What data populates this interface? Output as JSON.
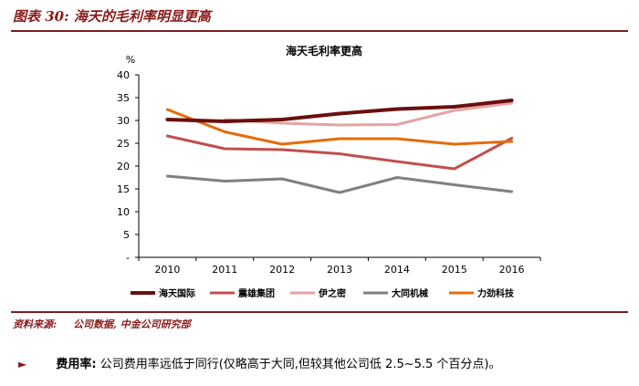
{
  "figure_title": "图表 30: 海天的毛利率明显更高",
  "source": {
    "label": "资料来源:",
    "text": "公司数据, 中金公司研究部"
  },
  "bullet": {
    "label": "费用率:",
    "text": "公司费用率远低于同行(仅略高于大同,但较其他公司低 2.5~5.5 个百分点)。"
  },
  "chart_data": {
    "type": "line",
    "title": "海天毛利率更高",
    "ylabel": "%",
    "xlabel": "",
    "ylim": [
      0,
      40
    ],
    "yticks": [
      "-",
      "5",
      "10",
      "15",
      "20",
      "25",
      "30",
      "35",
      "40"
    ],
    "x": [
      "2010",
      "2011",
      "2012",
      "2013",
      "2014",
      "2015",
      "2016"
    ],
    "series": [
      {
        "name": "海天国际",
        "color": "#6b0f0f",
        "values": [
          30.2,
          29.8,
          30.2,
          31.5,
          32.5,
          33.0,
          34.4
        ]
      },
      {
        "name": "震雄集团",
        "color": "#c0504d",
        "values": [
          26.6,
          23.8,
          23.6,
          22.7,
          21.0,
          19.4,
          26.1
        ]
      },
      {
        "name": "伊之密",
        "color": "#e6a3a3",
        "values": [
          null,
          30.2,
          29.4,
          29.0,
          29.1,
          32.2,
          33.8
        ]
      },
      {
        "name": "大同机械",
        "color": "#808080",
        "values": [
          17.8,
          16.7,
          17.2,
          14.2,
          17.5,
          15.9,
          14.4
        ]
      },
      {
        "name": "力劲科技",
        "color": "#e46c0a",
        "values": [
          32.4,
          27.5,
          24.8,
          26.0,
          26.0,
          24.8,
          25.4
        ]
      }
    ],
    "legend_position": "bottom",
    "grid": false
  }
}
